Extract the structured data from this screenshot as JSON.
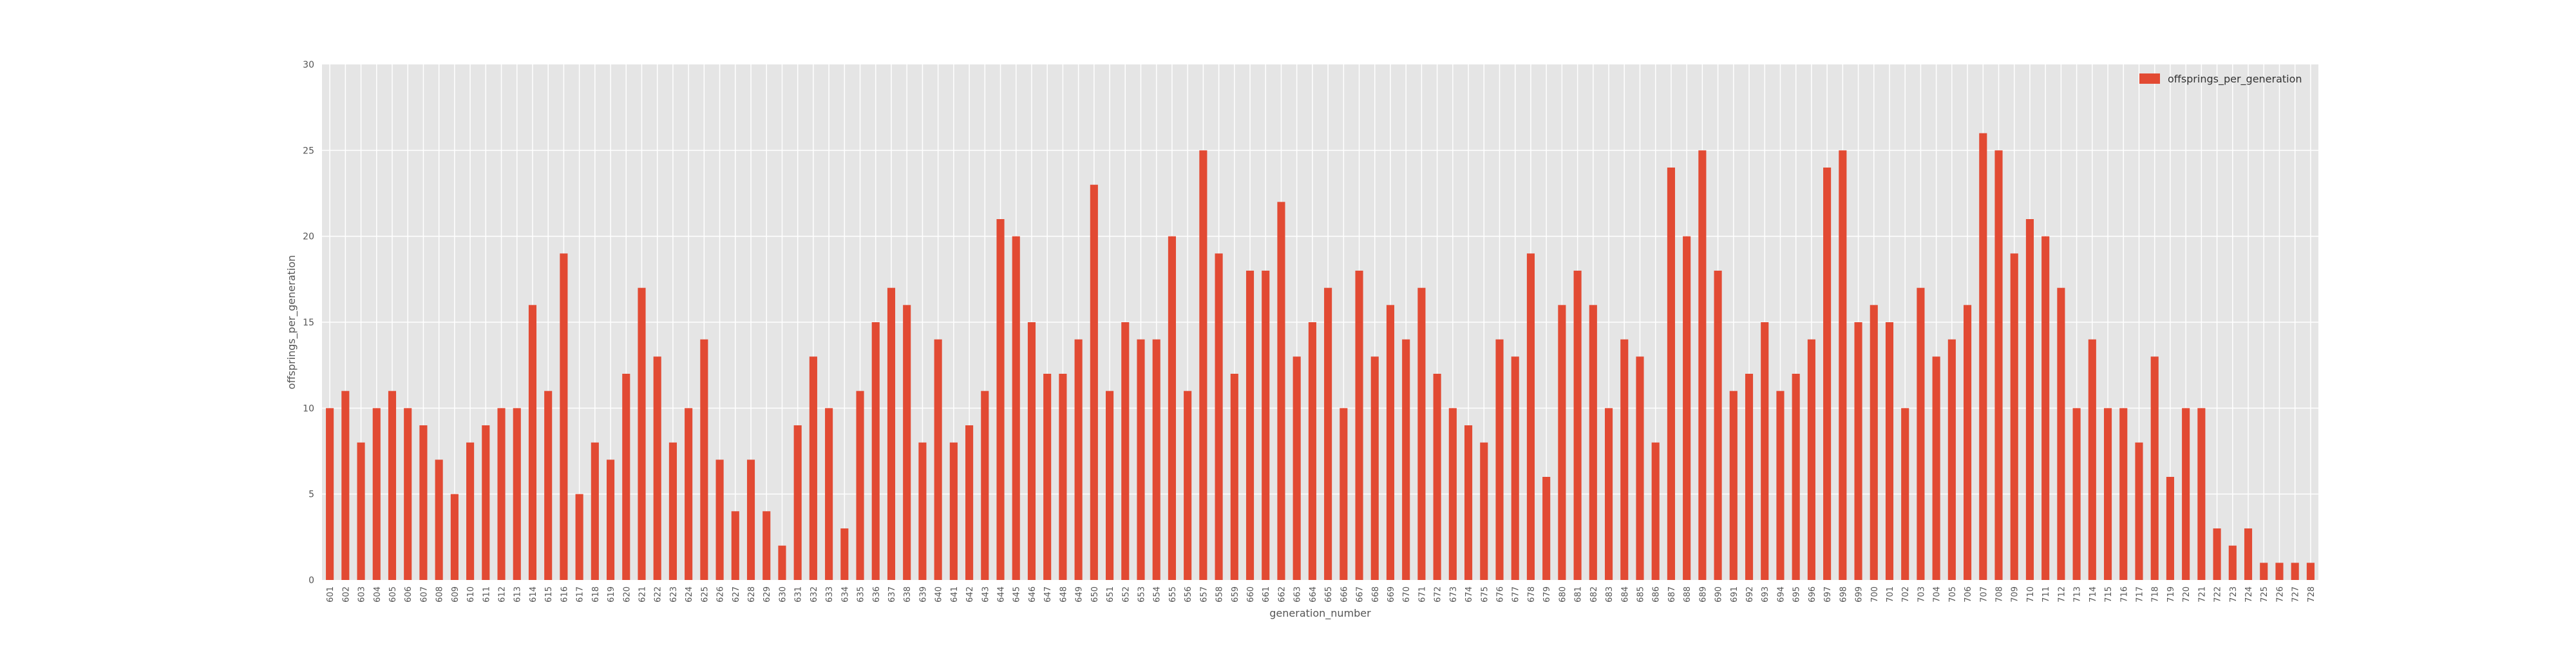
{
  "chart_data": {
    "type": "bar",
    "title": "",
    "xlabel": "generation_number",
    "ylabel": "offsprings_per_generation",
    "ylim": [
      0,
      30
    ],
    "yticks": [
      0,
      5,
      10,
      15,
      20,
      25,
      30
    ],
    "grid": true,
    "legend_position": "top-right",
    "categories": [
      "601",
      "602",
      "603",
      "604",
      "605",
      "606",
      "607",
      "608",
      "609",
      "610",
      "611",
      "612",
      "613",
      "614",
      "615",
      "616",
      "617",
      "618",
      "619",
      "620",
      "621",
      "622",
      "623",
      "624",
      "625",
      "626",
      "627",
      "628",
      "629",
      "630",
      "631",
      "632",
      "633",
      "634",
      "635",
      "636",
      "637",
      "638",
      "639",
      "640",
      "641",
      "642",
      "643",
      "644",
      "645",
      "646",
      "647",
      "648",
      "649",
      "650",
      "651",
      "652",
      "653",
      "654",
      "655",
      "656",
      "657",
      "658",
      "659",
      "660",
      "661",
      "662",
      "663",
      "664",
      "665",
      "666",
      "667",
      "668",
      "669",
      "670",
      "671",
      "672",
      "673",
      "674",
      "675",
      "676",
      "677",
      "678",
      "679",
      "680",
      "681",
      "682",
      "683",
      "684",
      "685",
      "686",
      "687",
      "688",
      "689",
      "690",
      "691",
      "692",
      "693",
      "694",
      "695",
      "696",
      "697",
      "698",
      "699",
      "700",
      "701",
      "702",
      "703",
      "704",
      "705",
      "706",
      "707",
      "708",
      "709",
      "710",
      "711",
      "712",
      "713",
      "714",
      "715",
      "716",
      "717",
      "718",
      "719",
      "720",
      "721",
      "722",
      "723",
      "724",
      "725",
      "726",
      "727",
      "728"
    ],
    "series": [
      {
        "name": "offsprings_per_generation",
        "color": "#E24A33",
        "values": [
          10,
          11,
          8,
          10,
          11,
          10,
          9,
          7,
          5,
          8,
          9,
          10,
          10,
          16,
          11,
          19,
          5,
          8,
          7,
          12,
          17,
          13,
          8,
          10,
          14,
          7,
          4,
          7,
          4,
          2,
          9,
          13,
          10,
          3,
          11,
          15,
          17,
          16,
          8,
          14,
          8,
          9,
          11,
          21,
          20,
          15,
          12,
          12,
          14,
          23,
          11,
          15,
          14,
          14,
          20,
          11,
          25,
          19,
          12,
          18,
          18,
          22,
          13,
          15,
          17,
          10,
          18,
          13,
          16,
          14,
          17,
          12,
          10,
          9,
          8,
          14,
          13,
          19,
          6,
          16,
          18,
          16,
          10,
          14,
          13,
          8,
          24,
          20,
          25,
          18,
          11,
          12,
          15,
          11,
          12,
          14,
          24,
          25,
          15,
          16,
          15,
          10,
          17,
          13,
          14,
          16,
          26,
          25,
          19,
          21,
          20,
          17,
          10,
          14,
          10,
          10,
          8,
          13,
          6,
          10,
          10,
          3,
          2,
          3,
          1,
          1,
          1,
          1
        ]
      }
    ]
  }
}
